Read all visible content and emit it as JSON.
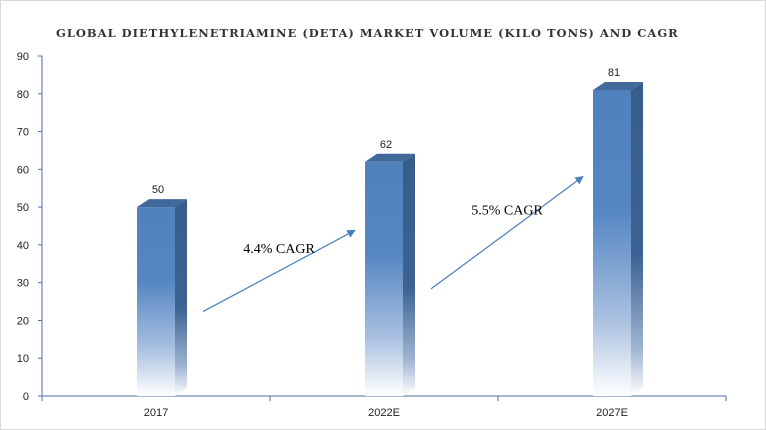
{
  "chart_data": {
    "type": "bar",
    "title": "GLOBAL DIETHYLENETRIAMINE (DETA) MARKET VOLUME (KILO TONS) AND CAGR",
    "categories": [
      "2017",
      "2022E",
      "2027E"
    ],
    "values": [
      50,
      62,
      81
    ],
    "ylim": [
      0,
      90
    ],
    "yticks": [
      0,
      10,
      20,
      30,
      40,
      50,
      60,
      70,
      80,
      90
    ],
    "grid": false,
    "legend": "none",
    "annotations": [
      {
        "text": "4.4% CAGR",
        "from_category": "2017",
        "to_category": "2022E"
      },
      {
        "text": "5.5% CAGR",
        "from_category": "2022E",
        "to_category": "2027E"
      }
    ],
    "colors": {
      "bar_front": "#4f81bd",
      "bar_side": "#385d8a",
      "bar_top": "#41699a",
      "arrow": "#4a7ebb",
      "axis": "#4f6fa5"
    }
  }
}
